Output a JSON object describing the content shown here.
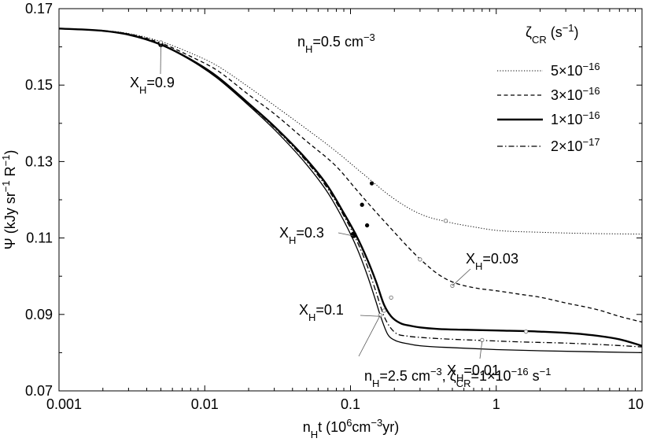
{
  "chart_data": {
    "type": "line",
    "xlabel": "n_Ht (10^6cm^-3yr)",
    "ylabel": "Ψ (kJy sr^-1 R^-1)",
    "x_scale": "log",
    "xlim": [
      0.001,
      10
    ],
    "ylim": [
      0.07,
      0.17
    ],
    "xticks": [
      {
        "value": 0.001,
        "label": "0.001"
      },
      {
        "value": 0.01,
        "label": "0.01"
      },
      {
        "value": 0.1,
        "label": "0.1"
      },
      {
        "value": 1,
        "label": "1"
      },
      {
        "value": 10,
        "label": "10"
      }
    ],
    "yticks": [
      {
        "value": 0.07,
        "label": "0.07"
      },
      {
        "value": 0.09,
        "label": "0.09"
      },
      {
        "value": 0.11,
        "label": "0.11"
      },
      {
        "value": 0.13,
        "label": "0.13"
      },
      {
        "value": 0.15,
        "label": "0.15"
      },
      {
        "value": 0.17,
        "label": "0.17"
      }
    ],
    "grid": false,
    "legend_title": "ζCR (s⁻¹)",
    "legend_position": "top-right",
    "series": [
      {
        "name": "5×10^-16",
        "style": "dotted",
        "width": 1,
        "color": "#000000",
        "x": [
          0.001,
          0.002,
          0.003,
          0.005,
          0.008,
          0.012,
          0.02,
          0.03,
          0.05,
          0.08,
          0.12,
          0.2,
          0.3,
          0.45,
          0.7,
          1,
          2,
          4,
          10
        ],
        "y": [
          0.1648,
          0.1643,
          0.1635,
          0.1614,
          0.1584,
          0.1552,
          0.1495,
          0.1447,
          0.1385,
          0.1326,
          0.127,
          0.1202,
          0.1163,
          0.1143,
          0.1129,
          0.112,
          0.1115,
          0.1112,
          0.111
        ]
      },
      {
        "name": "3×10^-16",
        "style": "dashed",
        "width": 1.3,
        "color": "#000000",
        "x": [
          0.001,
          0.002,
          0.003,
          0.005,
          0.008,
          0.012,
          0.02,
          0.03,
          0.05,
          0.08,
          0.11,
          0.14,
          0.2,
          0.25,
          0.3,
          0.4,
          0.5,
          0.7,
          1,
          1.5,
          2,
          3,
          5,
          7,
          10
        ],
        "y": [
          0.1648,
          0.1642,
          0.1634,
          0.161,
          0.1575,
          0.154,
          0.1475,
          0.1425,
          0.1353,
          0.1287,
          0.1226,
          0.118,
          0.1115,
          0.1075,
          0.1045,
          0.1005,
          0.0985,
          0.097,
          0.0962,
          0.0952,
          0.0945,
          0.093,
          0.0912,
          0.0895,
          0.088
        ]
      },
      {
        "name": "1×10^-16",
        "style": "solid",
        "width": 2.4,
        "color": "#000000",
        "x": [
          0.001,
          0.002,
          0.003,
          0.005,
          0.008,
          0.012,
          0.02,
          0.03,
          0.05,
          0.07,
          0.09,
          0.11,
          0.13,
          0.15,
          0.17,
          0.19,
          0.22,
          0.26,
          0.3,
          0.4,
          0.6,
          1,
          2,
          4,
          7,
          10
        ],
        "y": [
          0.1648,
          0.1642,
          0.1632,
          0.1606,
          0.1567,
          0.1524,
          0.1452,
          0.1392,
          0.1305,
          0.1235,
          0.1165,
          0.1105,
          0.1045,
          0.0985,
          0.0925,
          0.0895,
          0.0877,
          0.087,
          0.0866,
          0.0862,
          0.086,
          0.0858,
          0.0855,
          0.0848,
          0.0835,
          0.0818
        ]
      },
      {
        "name": "2×10^-17",
        "style": "dashdot",
        "width": 1.3,
        "color": "#000000",
        "x": [
          0.001,
          0.002,
          0.003,
          0.005,
          0.008,
          0.012,
          0.02,
          0.03,
          0.05,
          0.07,
          0.09,
          0.11,
          0.13,
          0.15,
          0.17,
          0.2,
          0.25,
          0.3,
          0.5,
          0.8,
          1.5,
          3,
          6,
          10
        ],
        "y": [
          0.1648,
          0.1642,
          0.1632,
          0.1606,
          0.1566,
          0.1522,
          0.145,
          0.1389,
          0.13,
          0.1228,
          0.1158,
          0.1094,
          0.1028,
          0.0958,
          0.0895,
          0.0854,
          0.0843,
          0.084,
          0.0835,
          0.0832,
          0.0828,
          0.0825,
          0.082,
          0.0815
        ]
      },
      {
        "name": "",
        "style": "solid",
        "width": 1.3,
        "color": "#000000",
        "x": [
          0.001,
          0.002,
          0.003,
          0.005,
          0.008,
          0.012,
          0.02,
          0.03,
          0.05,
          0.07,
          0.09,
          0.11,
          0.13,
          0.15,
          0.16,
          0.18,
          0.2,
          0.25,
          0.3,
          0.5,
          1,
          2,
          5,
          10
        ],
        "y": [
          0.1648,
          0.1642,
          0.1632,
          0.1605,
          0.1565,
          0.152,
          0.1447,
          0.1384,
          0.1292,
          0.1218,
          0.1145,
          0.1076,
          0.1004,
          0.0932,
          0.0898,
          0.0848,
          0.0833,
          0.0823,
          0.0818,
          0.0813,
          0.0808,
          0.0805,
          0.0802,
          0.08
        ]
      }
    ],
    "markers": [
      {
        "x": 0.005,
        "y": 0.1606,
        "filled": true,
        "size": 2.8
      },
      {
        "x": 0.005,
        "y": 0.1612,
        "filled": false,
        "size": 2
      },
      {
        "x": 0.14,
        "y": 0.1243,
        "filled": true,
        "size": 2.2
      },
      {
        "x": 0.45,
        "y": 0.1145,
        "filled": false,
        "size": 2.2
      },
      {
        "x": 0.12,
        "y": 0.1187,
        "filled": true,
        "size": 2.2
      },
      {
        "x": 0.3,
        "y": 0.1044,
        "filled": false,
        "size": 2.2
      },
      {
        "x": 0.13,
        "y": 0.1133,
        "filled": true,
        "size": 2.2
      },
      {
        "x": 0.105,
        "y": 0.1108,
        "filled": true,
        "size": 3.6
      },
      {
        "x": 0.19,
        "y": 0.0944,
        "filled": false,
        "size": 2.2
      },
      {
        "x": 0.17,
        "y": 0.091,
        "filled": false,
        "size": 2.2
      },
      {
        "x": 0.16,
        "y": 0.0898,
        "filled": false,
        "size": 2.2
      },
      {
        "x": 0.8,
        "y": 0.0833,
        "filled": false,
        "size": 2.2
      },
      {
        "x": 1.6,
        "y": 0.0855,
        "filled": false,
        "size": 2.2
      },
      {
        "x": 0.5,
        "y": 0.0975,
        "filled": false,
        "size": 2.2
      }
    ],
    "annotations": [
      {
        "main": "X",
        "sub": "H",
        "rest": "=0.9",
        "point": [
          0.005,
          0.1605
        ]
      },
      {
        "main": "X",
        "sub": "H",
        "rest": "=0.3",
        "point": [
          0.105,
          0.1105
        ]
      },
      {
        "main": "X",
        "sub": "H",
        "rest": "=0.1",
        "point": [
          0.16,
          0.0895
        ]
      },
      {
        "main": "X",
        "sub": "H",
        "rest": "=0.03",
        "point": [
          0.5,
          0.0975
        ]
      },
      {
        "main": "X",
        "sub": "H",
        "rest": "=0.01",
        "point": [
          0.8,
          0.083
        ]
      }
    ],
    "note_top": "n_H=0.5 cm^-3",
    "note_bottom": "n_H=2.5 cm^-3, ζ_CR=1×10^-16 s^-1"
  }
}
